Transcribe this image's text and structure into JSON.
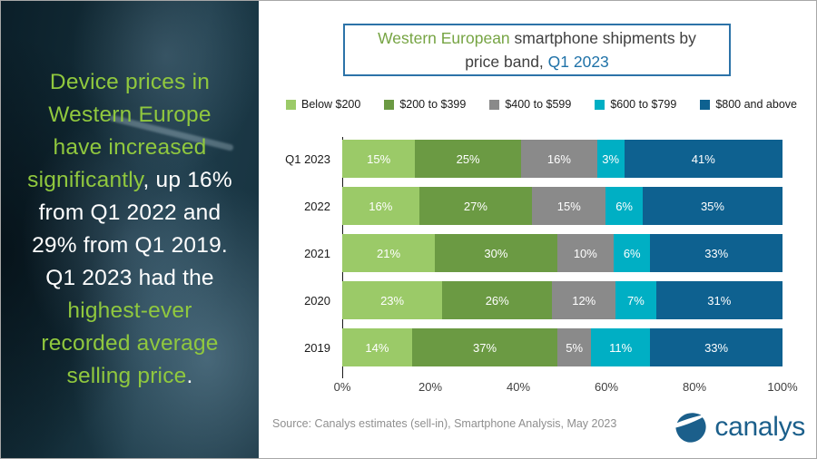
{
  "sidebar": {
    "green": "#90c83e",
    "white": "#ffffff",
    "lines": [
      {
        "segs": [
          {
            "t": "Device prices in",
            "c": "green"
          }
        ]
      },
      {
        "segs": [
          {
            "t": "Western Europe",
            "c": "green"
          }
        ]
      },
      {
        "segs": [
          {
            "t": "have increased",
            "c": "green"
          }
        ]
      },
      {
        "segs": [
          {
            "t": "significantly",
            "c": "green"
          },
          {
            "t": ", up 16%",
            "c": "white"
          }
        ]
      },
      {
        "segs": [
          {
            "t": "from Q1 2022 and",
            "c": "white"
          }
        ]
      },
      {
        "segs": [
          {
            "t": "29% from Q1 2019.",
            "c": "white"
          }
        ]
      },
      {
        "segs": [
          {
            "t": "Q1 2023 had the",
            "c": "white"
          }
        ]
      },
      {
        "segs": [
          {
            "t": "highest-ever",
            "c": "green"
          }
        ]
      },
      {
        "segs": [
          {
            "t": "recorded average",
            "c": "green"
          }
        ]
      },
      {
        "segs": [
          {
            "t": "selling price",
            "c": "green"
          },
          {
            "t": ".",
            "c": "white"
          }
        ]
      }
    ]
  },
  "title": {
    "colors": {
      "green": "#76a443",
      "dark": "#3f3f3f",
      "blue": "#1f72a8",
      "border": "#2c73a8"
    },
    "line1": [
      {
        "t": "Western European ",
        "c": "green"
      },
      {
        "t": "smartphone shipments by",
        "c": "dark"
      }
    ],
    "line2": [
      {
        "t": "price band, ",
        "c": "dark"
      },
      {
        "t": "Q1 2023",
        "c": "blue"
      }
    ]
  },
  "chart_data": {
    "type": "bar",
    "orientation": "horizontal",
    "stacked": true,
    "title": "Western European smartphone shipments by price band, Q1 2023",
    "categories": [
      "Q1 2023",
      "2022",
      "2021",
      "2020",
      "2019"
    ],
    "series": [
      {
        "name": "Below $200",
        "color": "#9bca68",
        "values": [
          15,
          16,
          21,
          23,
          14
        ]
      },
      {
        "name": "$200 to $399",
        "color": "#6b9a43",
        "values": [
          25,
          27,
          30,
          26,
          37
        ]
      },
      {
        "name": "$400 to $599",
        "color": "#8a8a8a",
        "values": [
          16,
          15,
          10,
          12,
          5
        ]
      },
      {
        "name": "$600 to $799",
        "color": "#00afc4",
        "values": [
          3,
          6,
          6,
          7,
          11
        ]
      },
      {
        "name": "$800 and above",
        "color": "#0e6190",
        "values": [
          41,
          35,
          33,
          31,
          33
        ]
      }
    ],
    "x_ticks": [
      "0%",
      "20%",
      "40%",
      "60%",
      "80%",
      "100%"
    ],
    "xlim": [
      0,
      100
    ],
    "value_suffix": "%",
    "legend_position": "top",
    "grid": false
  },
  "footer": {
    "source": "Source:  Canalys estimates (sell-in), Smartphone Analysis, May 2023",
    "logo_text": "canalys",
    "logo_color": "#1b5f8b"
  }
}
